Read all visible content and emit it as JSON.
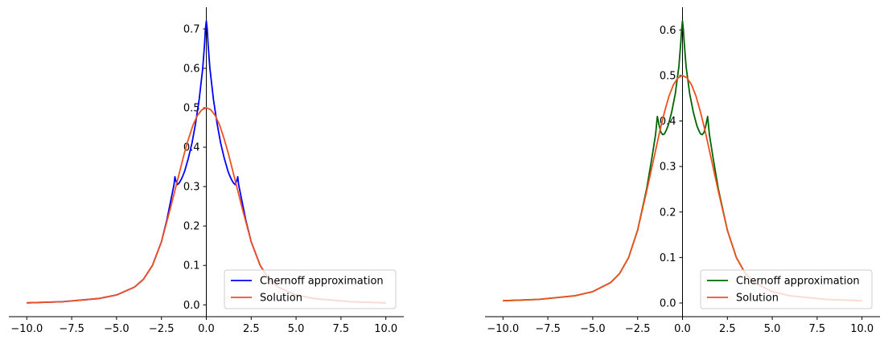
{
  "chart_data": [
    {
      "type": "line",
      "xlim": [
        -11.0,
        11.0
      ],
      "ylim": [
        -0.03,
        0.755
      ],
      "xticks": [
        -10.0,
        -7.5,
        -5.0,
        -2.5,
        0.0,
        2.5,
        5.0,
        7.5,
        10.0
      ],
      "xtick_labels": [
        "−10.0",
        "−7.5",
        "−5.0",
        "−2.5",
        "0.0",
        "2.5",
        "5.0",
        "7.5",
        "10.0"
      ],
      "yticks": [
        0.0,
        0.1,
        0.2,
        0.3,
        0.4,
        0.5,
        0.6,
        0.7
      ],
      "ytick_labels": [
        "0.0",
        "0.1",
        "0.2",
        "0.3",
        "0.4",
        "0.5",
        "0.6",
        "0.7"
      ],
      "spines": "centered-y-axis",
      "grid": false,
      "legend_position": "lower-right",
      "series": [
        {
          "name": "Chernoff approximation",
          "color": "#0000ff",
          "x": [
            -10.0,
            -8.0,
            -6.0,
            -5.0,
            -4.0,
            -3.5,
            -3.0,
            -2.5,
            -2.2,
            -2.0,
            -1.8,
            -1.75,
            -1.7,
            -1.6,
            -1.5,
            -1.4,
            -1.3,
            -1.2,
            -1.0,
            -0.8,
            -0.6,
            -0.4,
            -0.3,
            -0.2,
            -0.1,
            -0.05,
            0.0,
            0.05,
            0.1,
            0.2,
            0.3,
            0.4,
            0.6,
            0.8,
            1.0,
            1.2,
            1.3,
            1.4,
            1.5,
            1.6,
            1.7,
            1.75,
            1.8,
            2.0,
            2.2,
            2.5,
            3.0,
            3.5,
            4.0,
            5.0,
            6.0,
            8.0,
            10.0
          ],
          "y": [
            0.005,
            0.008,
            0.016,
            0.025,
            0.045,
            0.065,
            0.1,
            0.16,
            0.215,
            0.26,
            0.305,
            0.325,
            0.315,
            0.305,
            0.31,
            0.318,
            0.328,
            0.34,
            0.372,
            0.41,
            0.46,
            0.52,
            0.56,
            0.6,
            0.66,
            0.7,
            0.72,
            0.7,
            0.66,
            0.6,
            0.56,
            0.52,
            0.46,
            0.41,
            0.372,
            0.34,
            0.328,
            0.318,
            0.31,
            0.305,
            0.315,
            0.325,
            0.305,
            0.26,
            0.215,
            0.16,
            0.1,
            0.065,
            0.045,
            0.025,
            0.016,
            0.008,
            0.005
          ]
        },
        {
          "name": "Solution",
          "color": "#f0501e",
          "x": [
            -10.0,
            -8.0,
            -6.0,
            -5.0,
            -4.0,
            -3.5,
            -3.0,
            -2.5,
            -2.0,
            -1.75,
            -1.5,
            -1.25,
            -1.0,
            -0.75,
            -0.5,
            -0.25,
            0.0,
            0.25,
            0.5,
            0.75,
            1.0,
            1.25,
            1.5,
            1.75,
            2.0,
            2.5,
            3.0,
            3.5,
            4.0,
            5.0,
            6.0,
            8.0,
            10.0
          ],
          "y": [
            0.005,
            0.008,
            0.016,
            0.025,
            0.045,
            0.065,
            0.1,
            0.16,
            0.245,
            0.29,
            0.335,
            0.38,
            0.42,
            0.455,
            0.48,
            0.495,
            0.5,
            0.495,
            0.48,
            0.455,
            0.42,
            0.38,
            0.335,
            0.29,
            0.245,
            0.16,
            0.1,
            0.065,
            0.045,
            0.025,
            0.016,
            0.008,
            0.005
          ]
        }
      ]
    },
    {
      "type": "line",
      "xlim": [
        -11.0,
        11.0
      ],
      "ylim": [
        -0.03,
        0.65
      ],
      "xticks": [
        -10.0,
        -7.5,
        -5.0,
        -2.5,
        0.0,
        2.5,
        5.0,
        7.5,
        10.0
      ],
      "xtick_labels": [
        "−10.0",
        "−7.5",
        "−5.0",
        "−2.5",
        "0.0",
        "2.5",
        "5.0",
        "7.5",
        "10.0"
      ],
      "yticks": [
        0.0,
        0.1,
        0.2,
        0.3,
        0.4,
        0.5,
        0.6
      ],
      "ytick_labels": [
        "0.0",
        "0.1",
        "0.2",
        "0.3",
        "0.4",
        "0.5",
        "0.6"
      ],
      "spines": "centered-y-axis",
      "grid": false,
      "legend_position": "lower-right",
      "series": [
        {
          "name": "Chernoff approximation",
          "color": "#006400",
          "x": [
            -10.0,
            -8.0,
            -6.0,
            -5.0,
            -4.0,
            -3.5,
            -3.0,
            -2.5,
            -2.0,
            -1.7,
            -1.5,
            -1.4,
            -1.3,
            -1.2,
            -1.1,
            -1.0,
            -0.9,
            -0.8,
            -0.6,
            -0.4,
            -0.3,
            -0.2,
            -0.1,
            -0.05,
            0.0,
            0.05,
            0.1,
            0.2,
            0.3,
            0.4,
            0.6,
            0.8,
            0.9,
            1.0,
            1.1,
            1.2,
            1.3,
            1.4,
            1.5,
            1.7,
            2.0,
            2.5,
            3.0,
            3.5,
            4.0,
            5.0,
            6.0,
            8.0,
            10.0
          ],
          "y": [
            0.005,
            0.008,
            0.016,
            0.025,
            0.045,
            0.065,
            0.1,
            0.16,
            0.25,
            0.32,
            0.37,
            0.41,
            0.39,
            0.375,
            0.37,
            0.372,
            0.38,
            0.39,
            0.42,
            0.46,
            0.49,
            0.52,
            0.57,
            0.6,
            0.62,
            0.6,
            0.57,
            0.52,
            0.49,
            0.46,
            0.42,
            0.39,
            0.38,
            0.372,
            0.37,
            0.375,
            0.39,
            0.41,
            0.37,
            0.32,
            0.25,
            0.16,
            0.1,
            0.065,
            0.045,
            0.025,
            0.016,
            0.008,
            0.005
          ]
        },
        {
          "name": "Solution",
          "color": "#f0501e",
          "x": [
            -10.0,
            -8.0,
            -6.0,
            -5.0,
            -4.0,
            -3.5,
            -3.0,
            -2.5,
            -2.0,
            -1.75,
            -1.5,
            -1.25,
            -1.0,
            -0.75,
            -0.5,
            -0.25,
            0.0,
            0.25,
            0.5,
            0.75,
            1.0,
            1.25,
            1.5,
            1.75,
            2.0,
            2.5,
            3.0,
            3.5,
            4.0,
            5.0,
            6.0,
            8.0,
            10.0
          ],
          "y": [
            0.005,
            0.008,
            0.016,
            0.025,
            0.045,
            0.065,
            0.1,
            0.16,
            0.245,
            0.29,
            0.335,
            0.38,
            0.42,
            0.455,
            0.48,
            0.495,
            0.5,
            0.495,
            0.48,
            0.455,
            0.42,
            0.38,
            0.335,
            0.29,
            0.245,
            0.16,
            0.1,
            0.065,
            0.045,
            0.025,
            0.016,
            0.008,
            0.005
          ]
        }
      ]
    }
  ]
}
